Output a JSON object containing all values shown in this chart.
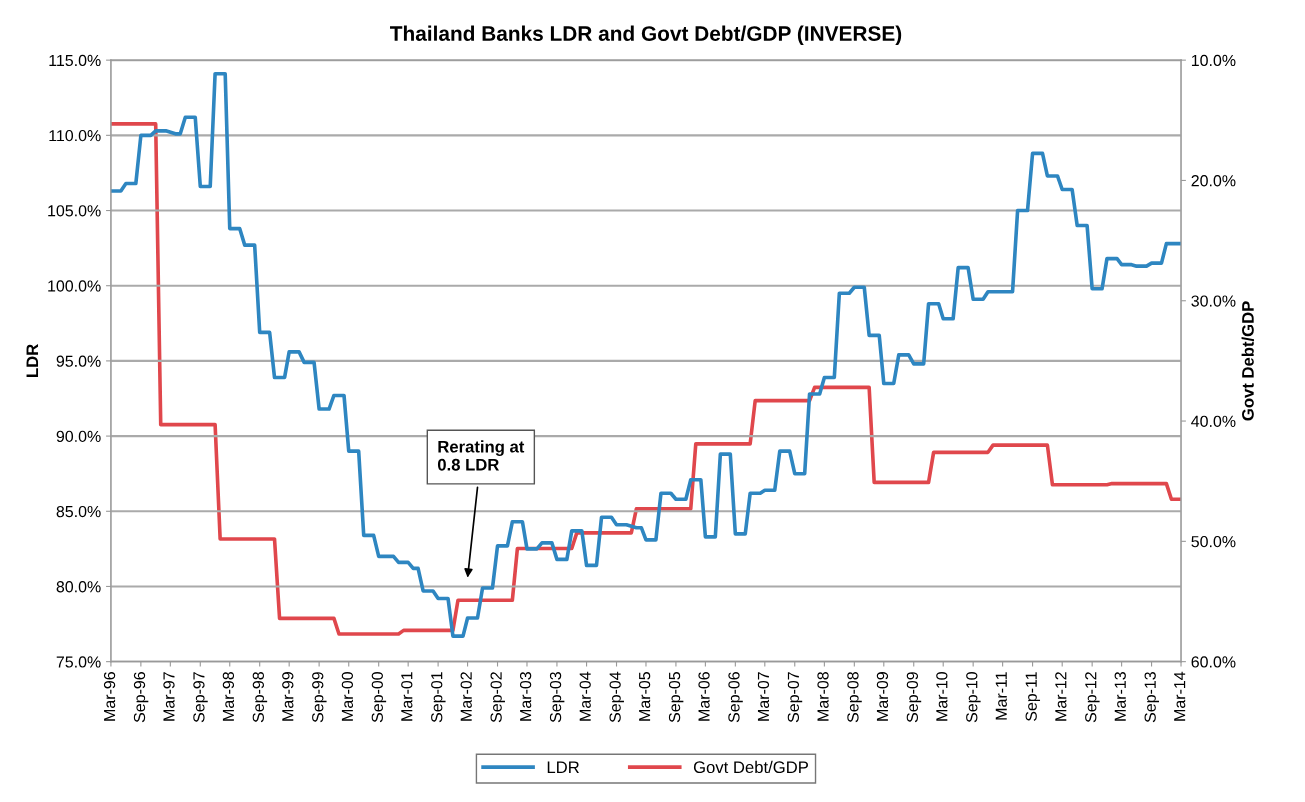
{
  "chart_data": {
    "type": "line",
    "title": "Thailand Banks LDR and Govt Debt/GDP (INVERSE)",
    "ylabel": "LDR",
    "y2label": "Govt Debt/GDP",
    "series": [
      {
        "name": "LDR",
        "color": "#2e86c1",
        "x": [
          "1996-03",
          "1996-05",
          "1996-06",
          "1996-08",
          "1996-09",
          "1996-11",
          "1996-12",
          "1997-02",
          "1997-04",
          "1997-05",
          "1997-06",
          "1997-08",
          "1997-09",
          "1997-11",
          "1997-12",
          "1998-02",
          "1998-03",
          "1998-05",
          "1998-06",
          "1998-08",
          "1998-09",
          "1998-11",
          "1998-12",
          "1999-02",
          "1999-03",
          "1999-05",
          "1999-06",
          "1999-08",
          "1999-09",
          "1999-11",
          "1999-12",
          "2000-02",
          "2000-03",
          "2000-05",
          "2000-06",
          "2000-08",
          "2000-09",
          "2000-12",
          "2001-01",
          "2001-03",
          "2001-04",
          "2001-05",
          "2001-06",
          "2001-08",
          "2001-09",
          "2001-11",
          "2001-12",
          "2002-02",
          "2002-03",
          "2002-05",
          "2002-06",
          "2002-08",
          "2002-09",
          "2002-11",
          "2002-12",
          "2003-02",
          "2003-03",
          "2003-05",
          "2003-06",
          "2003-08",
          "2003-09",
          "2003-11",
          "2003-12",
          "2004-02",
          "2004-03",
          "2004-05",
          "2004-06",
          "2004-08",
          "2004-09",
          "2004-11",
          "2005-01",
          "2005-02",
          "2005-03",
          "2005-05",
          "2005-06",
          "2005-08",
          "2005-09",
          "2005-11",
          "2005-12",
          "2006-02",
          "2006-03",
          "2006-05",
          "2006-06",
          "2006-08",
          "2006-09",
          "2006-11",
          "2006-12",
          "2007-02",
          "2007-03",
          "2007-05",
          "2007-06",
          "2007-08",
          "2007-09",
          "2007-11",
          "2007-12",
          "2008-02",
          "2008-03",
          "2008-05",
          "2008-06",
          "2008-08",
          "2008-09",
          "2008-11",
          "2008-12",
          "2009-02",
          "2009-03",
          "2009-05",
          "2009-06",
          "2009-08",
          "2009-09",
          "2009-11",
          "2009-12",
          "2010-02",
          "2010-03",
          "2010-05",
          "2010-06",
          "2010-08",
          "2010-09",
          "2010-11",
          "2010-12",
          "2011-05",
          "2011-06",
          "2011-08",
          "2011-09",
          "2011-11",
          "2011-12",
          "2012-02",
          "2012-03",
          "2012-05",
          "2012-06",
          "2012-08",
          "2012-09",
          "2012-11",
          "2012-12",
          "2013-02",
          "2013-03",
          "2013-05",
          "2013-06",
          "2013-08",
          "2013-09",
          "2013-11",
          "2013-12",
          "2014-03"
        ],
        "values": [
          106.3,
          106.3,
          106.8,
          106.8,
          110.0,
          110.0,
          110.3,
          110.3,
          110.1,
          110.1,
          111.2,
          111.2,
          106.6,
          106.6,
          114.1,
          114.1,
          103.8,
          103.8,
          102.7,
          102.7,
          96.9,
          96.9,
          93.9,
          93.9,
          95.6,
          95.6,
          94.9,
          94.9,
          91.8,
          91.8,
          92.7,
          92.7,
          89.0,
          89.0,
          83.4,
          83.4,
          82.0,
          82.0,
          81.6,
          81.6,
          81.2,
          81.2,
          79.7,
          79.7,
          79.2,
          79.2,
          76.7,
          76.7,
          77.9,
          77.9,
          79.9,
          79.9,
          82.7,
          82.7,
          84.3,
          84.3,
          82.5,
          82.5,
          82.9,
          82.9,
          81.8,
          81.8,
          83.7,
          83.7,
          81.4,
          81.4,
          84.6,
          84.6,
          84.1,
          84.1,
          83.9,
          83.9,
          83.1,
          83.1,
          86.2,
          86.2,
          85.8,
          85.8,
          87.1,
          87.1,
          83.3,
          83.3,
          88.8,
          88.8,
          83.5,
          83.5,
          86.2,
          86.2,
          86.4,
          86.4,
          89.0,
          89.0,
          87.5,
          87.5,
          92.8,
          92.8,
          93.9,
          93.9,
          99.5,
          99.5,
          99.9,
          99.9,
          96.7,
          96.7,
          93.5,
          93.5,
          95.4,
          95.4,
          94.8,
          94.8,
          98.8,
          98.8,
          97.8,
          97.8,
          101.2,
          101.2,
          99.1,
          99.1,
          99.6,
          99.6,
          105.0,
          105.0,
          108.8,
          108.8,
          107.3,
          107.3,
          106.4,
          106.4,
          104.0,
          104.0,
          99.8,
          99.8,
          101.8,
          101.8,
          101.4,
          101.4,
          101.3,
          101.3,
          101.5,
          101.5,
          102.8,
          102.8
        ]
      },
      {
        "name": "Govt Debt/GDP",
        "color": "#e0474c",
        "axis": "y2",
        "x": [
          "1996-03",
          "1996-12",
          "1997-01",
          "1997-12",
          "1998-01",
          "1998-12",
          "1999-01",
          "1999-12",
          "2000-01",
          "2001-01",
          "2001-02",
          "2001-12",
          "2002-01",
          "2002-12",
          "2003-01",
          "2003-12",
          "2004-01",
          "2004-12",
          "2005-01",
          "2005-12",
          "2006-01",
          "2006-12",
          "2007-01",
          "2007-12",
          "2008-01",
          "2008-12",
          "2009-01",
          "2009-12",
          "2010-01",
          "2010-12",
          "2011-01",
          "2011-12",
          "2012-01",
          "2012-12",
          "2013-01",
          "2013-12",
          "2014-01",
          "2014-03"
        ],
        "values": [
          15.3,
          15.3,
          40.3,
          40.3,
          49.8,
          49.8,
          56.4,
          56.4,
          57.7,
          57.7,
          57.4,
          57.4,
          54.9,
          54.9,
          50.6,
          50.6,
          49.3,
          49.3,
          47.3,
          47.3,
          41.9,
          41.9,
          38.3,
          38.3,
          37.2,
          37.2,
          45.1,
          45.1,
          42.6,
          42.6,
          42.0,
          42.0,
          45.3,
          45.3,
          45.2,
          45.2,
          46.5,
          46.5
        ]
      }
    ],
    "xlim": [
      "1996-03",
      "2014-03"
    ],
    "xticks": [
      {
        "value": "1996-03",
        "label": "Mar-96"
      },
      {
        "value": "1996-09",
        "label": "Sep-96"
      },
      {
        "value": "1997-03",
        "label": "Mar-97"
      },
      {
        "value": "1997-09",
        "label": "Sep-97"
      },
      {
        "value": "1998-03",
        "label": "Mar-98"
      },
      {
        "value": "1998-09",
        "label": "Sep-98"
      },
      {
        "value": "1999-03",
        "label": "Mar-99"
      },
      {
        "value": "1999-09",
        "label": "Sep-99"
      },
      {
        "value": "2000-03",
        "label": "Mar-00"
      },
      {
        "value": "2000-09",
        "label": "Sep-00"
      },
      {
        "value": "2001-03",
        "label": "Mar-01"
      },
      {
        "value": "2001-09",
        "label": "Sep-01"
      },
      {
        "value": "2002-03",
        "label": "Mar-02"
      },
      {
        "value": "2002-09",
        "label": "Sep-02"
      },
      {
        "value": "2003-03",
        "label": "Mar-03"
      },
      {
        "value": "2003-09",
        "label": "Sep-03"
      },
      {
        "value": "2004-03",
        "label": "Mar-04"
      },
      {
        "value": "2004-09",
        "label": "Sep-04"
      },
      {
        "value": "2005-03",
        "label": "Mar-05"
      },
      {
        "value": "2005-09",
        "label": "Sep-05"
      },
      {
        "value": "2006-03",
        "label": "Mar-06"
      },
      {
        "value": "2006-09",
        "label": "Sep-06"
      },
      {
        "value": "2007-03",
        "label": "Mar-07"
      },
      {
        "value": "2007-09",
        "label": "Sep-07"
      },
      {
        "value": "2008-03",
        "label": "Mar-08"
      },
      {
        "value": "2008-09",
        "label": "Sep-08"
      },
      {
        "value": "2009-03",
        "label": "Mar-09"
      },
      {
        "value": "2009-09",
        "label": "Sep-09"
      },
      {
        "value": "2010-03",
        "label": "Mar-10"
      },
      {
        "value": "2010-09",
        "label": "Sep-10"
      },
      {
        "value": "2011-03",
        "label": "Mar-11"
      },
      {
        "value": "2011-09",
        "label": "Sep-11"
      },
      {
        "value": "2012-03",
        "label": "Mar-12"
      },
      {
        "value": "2012-09",
        "label": "Sep-12"
      },
      {
        "value": "2013-03",
        "label": "Mar-13"
      },
      {
        "value": "2013-09",
        "label": "Sep-13"
      },
      {
        "value": "2014-03",
        "label": "Mar-14"
      }
    ],
    "ylim": [
      75,
      115
    ],
    "yticks": [
      {
        "value": 75,
        "label": "75.0%"
      },
      {
        "value": 80,
        "label": "80.0%"
      },
      {
        "value": 85,
        "label": "85.0%"
      },
      {
        "value": 90,
        "label": "90.0%"
      },
      {
        "value": 95,
        "label": "95.0%"
      },
      {
        "value": 100,
        "label": "100.0%"
      },
      {
        "value": 105,
        "label": "105.0%"
      },
      {
        "value": 110,
        "label": "110.0%"
      },
      {
        "value": 115,
        "label": "115.0%"
      }
    ],
    "y2lim": [
      60,
      10
    ],
    "y2ticks": [
      {
        "value": 10,
        "label": "10.0%"
      },
      {
        "value": 20,
        "label": "20.0%"
      },
      {
        "value": 30,
        "label": "30.0%"
      },
      {
        "value": 40,
        "label": "40.0%"
      },
      {
        "value": 50,
        "label": "50.0%"
      },
      {
        "value": 60,
        "label": "60.0%"
      }
    ],
    "annotations": [
      "Rerating at\n0.8 LDR"
    ],
    "grid": "y",
    "legend": "bottom",
    "line_style": "solid",
    "marker": "none"
  }
}
